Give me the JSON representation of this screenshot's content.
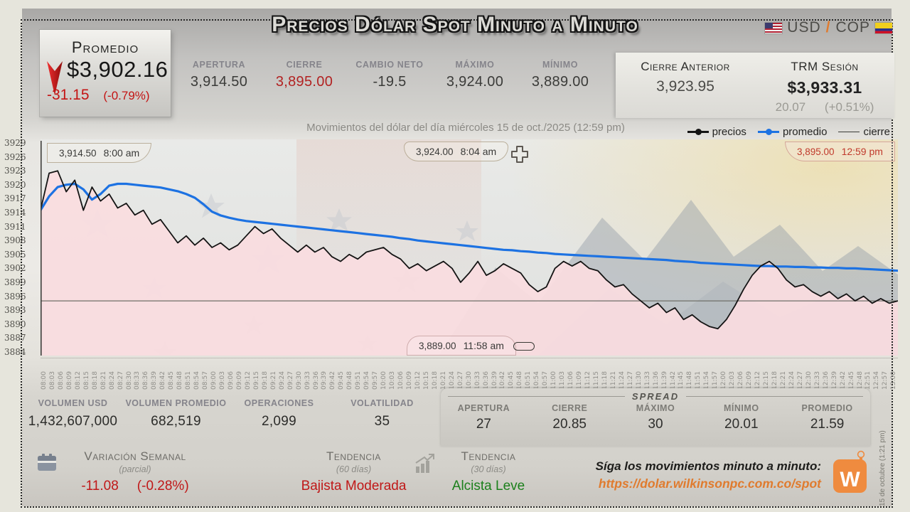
{
  "header": {
    "promedio": {
      "label": "Promedio",
      "value": "$3,902.16",
      "change": "-31.15",
      "change_pct": "(-0.79%)"
    },
    "title": "Precios Dólar Spot Minuto a Minuto",
    "pair": {
      "base": "USD",
      "separator": "/",
      "quote": "COP"
    },
    "stats": [
      {
        "label": "APERTURA",
        "value": "3,914.50",
        "tone": "dark"
      },
      {
        "label": "CIERRE",
        "value": "3,895.00",
        "tone": "red"
      },
      {
        "label": "CAMBIO NETO",
        "value": "-19.5",
        "tone": "dark"
      },
      {
        "label": "MÁXIMO",
        "value": "3,924.00",
        "tone": "dark"
      },
      {
        "label": "MÍNIMO",
        "value": "3,889.00",
        "tone": "dark"
      }
    ],
    "closing_panel": {
      "cierre_anterior_label": "Cierre Anterior",
      "cierre_anterior_value": "3,923.95",
      "trm_label": "TRM Sesión",
      "trm_value": "$3,933.31",
      "trm_change": "20.07",
      "trm_change_pct": "(+0.51%)"
    }
  },
  "subtitle": "Movimientos del dólar del día miércoles 15 de oct./2025 (12:59 pm)",
  "legend": [
    {
      "label": "precios",
      "color": "#141414",
      "marker": true,
      "thin": false
    },
    {
      "label": "promedio",
      "color": "#1d72e2",
      "marker": true,
      "thin": false
    },
    {
      "label": "cierre",
      "color": "#3c3c38",
      "marker": false,
      "thin": true
    }
  ],
  "annotations": {
    "open": {
      "value": "3,914.50",
      "time": "8:00 am"
    },
    "high": {
      "value": "3,924.00",
      "time": "8:04 am"
    },
    "low": {
      "value": "3,889.00",
      "time": "11:58 am"
    },
    "close": {
      "value": "3,895.00",
      "time": "12:59 pm"
    }
  },
  "chart_data": {
    "type": "line",
    "title": "Movimientos del dólar del día miércoles 15 de oct./2025 (12:59 pm)",
    "xlabel": "hora",
    "ylabel": "COP",
    "ylim": [
      3884,
      3929
    ],
    "grid": false,
    "legend_position": "top-right",
    "y_ticks": [
      3929,
      3926,
      3923,
      3920,
      3917,
      3914,
      3911,
      3908,
      3905,
      3902,
      3899,
      3896,
      3893,
      3890,
      3887,
      3884
    ],
    "x_ticks": [
      "08:00",
      "08:03",
      "08:06",
      "08:09",
      "08:12",
      "08:15",
      "08:18",
      "08:21",
      "08:24",
      "08:27",
      "08:30",
      "08:33",
      "08:36",
      "08:39",
      "08:42",
      "08:45",
      "08:48",
      "08:51",
      "08:54",
      "08:57",
      "09:00",
      "09:03",
      "09:06",
      "09:09",
      "09:12",
      "09:15",
      "09:18",
      "09:21",
      "09:24",
      "09:27",
      "09:30",
      "09:33",
      "09:36",
      "09:39",
      "09:42",
      "09:45",
      "09:48",
      "09:51",
      "09:54",
      "09:57",
      "10:00",
      "10:03",
      "10:06",
      "10:09",
      "10:12",
      "10:15",
      "10:18",
      "10:21",
      "10:24",
      "10:27",
      "10:30",
      "10:33",
      "10:36",
      "10:39",
      "10:42",
      "10:45",
      "10:48",
      "10:51",
      "10:54",
      "10:57",
      "11:00",
      "11:03",
      "11:06",
      "11:09",
      "11:12",
      "11:15",
      "11:18",
      "11:21",
      "11:24",
      "11:27",
      "11:30",
      "11:33",
      "11:36",
      "11:39",
      "11:42",
      "11:45",
      "11:48",
      "11:51",
      "11:54",
      "11:57",
      "12:00",
      "12:03",
      "12:06",
      "12:09",
      "12:12",
      "12:15",
      "12:18",
      "12:21",
      "12:24",
      "12:27",
      "12:30",
      "12:33",
      "12:36",
      "12:39",
      "12:42",
      "12:45",
      "12:48",
      "12:51",
      "12:54",
      "12:57",
      "13:00"
    ],
    "key_points": {
      "open": 3914.5,
      "high": 3924.0,
      "high_time": "8:04 am",
      "low": 3889.0,
      "low_time": "11:58 am",
      "close": 3895.0,
      "close_time": "12:59 pm"
    },
    "series": [
      {
        "name": "precios",
        "type": "line",
        "color": "#141414",
        "values": [
          3914.5,
          3922.5,
          3923.0,
          3918.5,
          3921.0,
          3914.5,
          3919.5,
          3916.5,
          3918.0,
          3915.0,
          3916.0,
          3913.5,
          3914.5,
          3911.5,
          3912.5,
          3910.0,
          3907.5,
          3909.0,
          3907.0,
          3908.5,
          3906.5,
          3907.5,
          3906.0,
          3907.0,
          3909.0,
          3911.0,
          3909.5,
          3910.5,
          3908.5,
          3907.0,
          3905.5,
          3907.0,
          3905.5,
          3906.5,
          3904.5,
          3903.5,
          3905.0,
          3904.0,
          3905.5,
          3906.0,
          3906.5,
          3905.0,
          3904.0,
          3902.0,
          3903.0,
          3901.5,
          3902.5,
          3903.5,
          3902.0,
          3899.0,
          3901.0,
          3903.5,
          3900.5,
          3901.5,
          3903.0,
          3902.0,
          3901.0,
          3898.5,
          3897.0,
          3898.0,
          3902.0,
          3903.5,
          3902.5,
          3903.5,
          3902.0,
          3901.5,
          3899.5,
          3898.0,
          3898.5,
          3896.5,
          3895.0,
          3893.5,
          3894.5,
          3892.5,
          3893.5,
          3891.0,
          3892.0,
          3890.5,
          3889.5,
          3889.0,
          3891.0,
          3894.0,
          3897.5,
          3900.5,
          3902.5,
          3903.5,
          3902.0,
          3899.5,
          3898.0,
          3898.5,
          3897.0,
          3896.0,
          3897.0,
          3895.5,
          3896.5,
          3895.0,
          3896.0,
          3894.5,
          3895.5,
          3894.5,
          3895.0
        ]
      },
      {
        "name": "promedio",
        "type": "line",
        "color": "#1d72e2",
        "values": [
          3914.5,
          3917.5,
          3919.5,
          3920.0,
          3920.2,
          3919.0,
          3916.8,
          3918.0,
          3919.8,
          3920.2,
          3920.2,
          3920.0,
          3919.8,
          3919.6,
          3919.4,
          3919.0,
          3918.6,
          3918.0,
          3917.2,
          3915.8,
          3914.2,
          3913.4,
          3912.9,
          3912.5,
          3912.2,
          3912.0,
          3911.8,
          3911.6,
          3911.4,
          3911.2,
          3911.0,
          3910.8,
          3910.6,
          3910.4,
          3910.2,
          3910.0,
          3909.8,
          3909.6,
          3909.4,
          3909.2,
          3909.0,
          3908.8,
          3908.5,
          3908.3,
          3908.0,
          3907.8,
          3907.6,
          3907.4,
          3907.2,
          3907.0,
          3906.8,
          3906.6,
          3906.4,
          3906.2,
          3906.0,
          3905.9,
          3905.7,
          3905.6,
          3905.4,
          3905.3,
          3905.1,
          3905.0,
          3904.9,
          3904.8,
          3904.7,
          3904.6,
          3904.5,
          3904.4,
          3904.3,
          3904.2,
          3904.1,
          3904.0,
          3903.9,
          3903.8,
          3903.6,
          3903.5,
          3903.4,
          3903.2,
          3903.1,
          3903.0,
          3902.9,
          3902.8,
          3902.7,
          3902.6,
          3902.5,
          3902.5,
          3902.4,
          3902.4,
          3902.3,
          3902.3,
          3902.2,
          3902.2,
          3902.1,
          3902.1,
          3902.0,
          3902.0,
          3901.9,
          3901.8,
          3901.7,
          3901.6,
          3901.5
        ]
      },
      {
        "name": "cierre",
        "type": "hline",
        "color": "#6f6f69",
        "value": 3895.0
      }
    ]
  },
  "lower_stats": [
    {
      "label": "VOLUMEN USD",
      "value": "1,432,607,000"
    },
    {
      "label": "VOLUMEN PROMEDIO",
      "value": "682,519"
    },
    {
      "label": "OPERACIONES",
      "value": "2,099"
    },
    {
      "label": "VOLATILIDAD",
      "value": "35"
    }
  ],
  "spread": {
    "title": "SPREAD",
    "items": [
      {
        "label": "APERTURA",
        "value": "27"
      },
      {
        "label": "CIERRE",
        "value": "20.85"
      },
      {
        "label": "MÁXIMO",
        "value": "30"
      },
      {
        "label": "MÍNIMO",
        "value": "20.01"
      },
      {
        "label": "PROMEDIO",
        "value": "21.59"
      }
    ]
  },
  "footer": {
    "variacion": {
      "label": "Variación Semanal",
      "sub": "(parcial)",
      "value": "-11.08",
      "pct": "(-0.28%)"
    },
    "tendencia60": {
      "label": "Tendencia",
      "sub": "(60 días)",
      "value": "Bajista Moderada",
      "tone": "red"
    },
    "tendencia30": {
      "label": "Tendencia",
      "sub": "(30 días)",
      "value": "Alcista Leve",
      "tone": "green"
    },
    "promo": {
      "line1": "Síga los movimientos minuto a minuto:",
      "url": "https://dolar.wilkinsonpc.com.co/spot"
    },
    "logo_letter": "W"
  },
  "side_note": "15 de octubre (1:21 pm)",
  "colors": {
    "accent_red": "#c01818",
    "accent_green": "#1c801c",
    "accent_orange": "#e07b2e",
    "line_precios": "#141414",
    "line_promedio": "#1d72e2",
    "line_cierre": "#6f6f69",
    "area_pink": "#fadde0"
  }
}
